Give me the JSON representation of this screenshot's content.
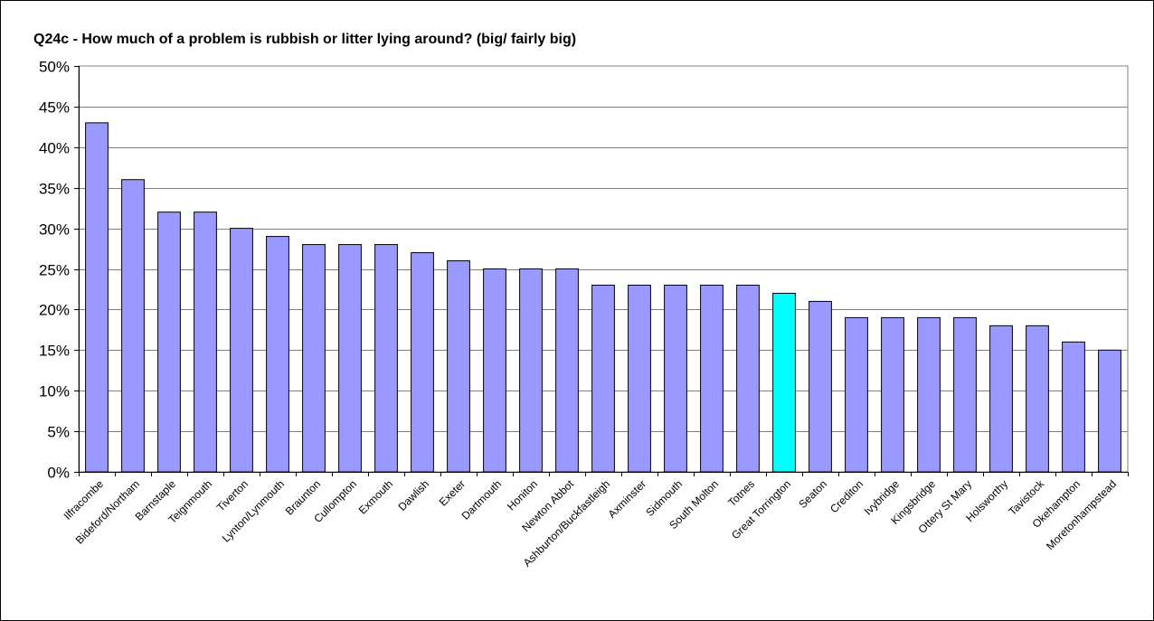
{
  "chart_data": {
    "type": "bar",
    "title": "Q24c - How much of a problem is rubbish or litter lying around? (big/ fairly big)",
    "xlabel": "",
    "ylabel": "",
    "ylim": [
      0,
      50
    ],
    "y_ticks": [
      "0%",
      "5%",
      "10%",
      "15%",
      "20%",
      "25%",
      "30%",
      "35%",
      "40%",
      "45%",
      "50%"
    ],
    "y_tick_values": [
      0,
      5,
      10,
      15,
      20,
      25,
      30,
      35,
      40,
      45,
      50
    ],
    "grid": true,
    "legend": "none",
    "categories": [
      "Ilfracombe",
      "Bideford/Northam",
      "Barnstaple",
      "Teignmouth",
      "Tiverton",
      "Lynton/Lynmouth",
      "Braunton",
      "Cullompton",
      "Exmouth",
      "Dawlish",
      "Exeter",
      "Dartmouth",
      "Honiton",
      "Newton Abbot",
      "Ashburton/Buckfastleigh",
      "Axminster",
      "Sidmouth",
      "South Molton",
      "Totnes",
      "Great Torrington",
      "Seaton",
      "Crediton",
      "Ivybridge",
      "Kingsbridge",
      "Ottery St Mary",
      "Holsworthy",
      "Tavistock",
      "Okehampton",
      "Moretonhampstead"
    ],
    "values": [
      43,
      36,
      32,
      32,
      30,
      29,
      28,
      28,
      28,
      27,
      26,
      25,
      25,
      25,
      23,
      23,
      23,
      23,
      23,
      22,
      21,
      19,
      19,
      19,
      19,
      18,
      18,
      16,
      15
    ],
    "highlight_category": "Great Torrington",
    "colors": {
      "bar": "#9999ff",
      "highlight": "#00ffff",
      "gridline": "#808080",
      "axis": "#000000",
      "plot_background": "#ffffff"
    }
  }
}
